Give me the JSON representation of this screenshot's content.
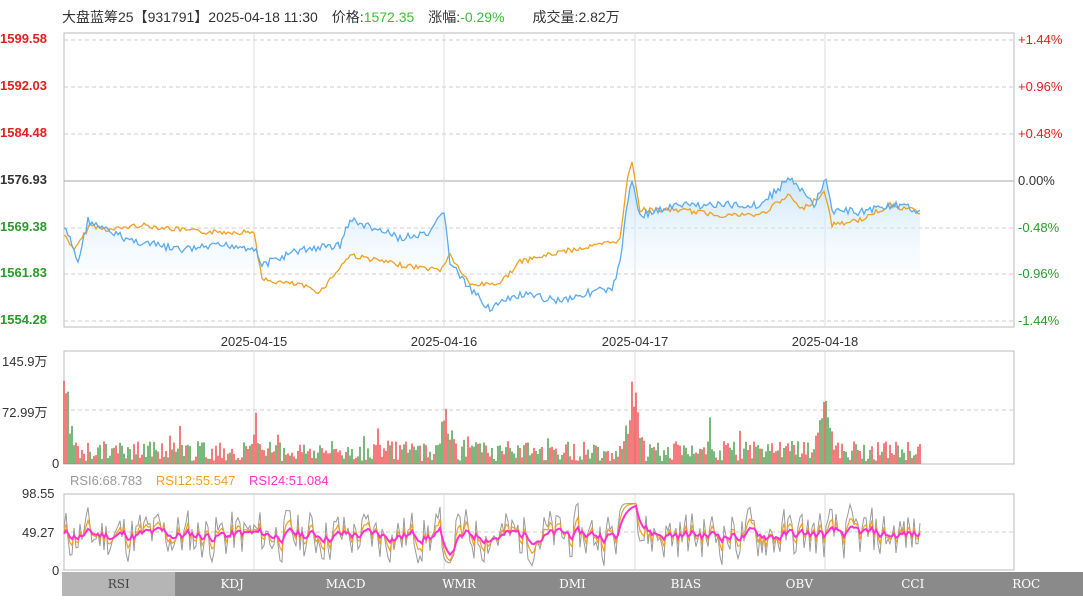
{
  "header": {
    "name": "大盘蓝筹25【931791】",
    "datetime": "2025-04-18 11:30",
    "price_label": "价格:",
    "price": "1572.35",
    "change_label": "涨幅:",
    "change": "-0.29%",
    "volume_label": "成交量:",
    "volume": "2.82万"
  },
  "price_axis": {
    "left": [
      "1599.58",
      "1592.03",
      "1584.48",
      "1576.93",
      "1569.38",
      "1561.83",
      "1554.28"
    ],
    "right": [
      "+1.44%",
      "+0.96%",
      "+0.48%",
      "0.00%",
      "-0.48%",
      "-0.96%",
      "-1.44%"
    ]
  },
  "dates": [
    "2025-04-15",
    "2025-04-16",
    "2025-04-17",
    "2025-04-18"
  ],
  "volume_axis": [
    "145.9万",
    "72.99万",
    "0"
  ],
  "rsi": {
    "axis": [
      "98.55",
      "49.27",
      "0"
    ],
    "legend": {
      "rsi6": "RSI6:68.783",
      "rsi12": "RSI12:55.547",
      "rsi24": "RSI24:51.084"
    }
  },
  "tabs": [
    "RSI",
    "KDJ",
    "MACD",
    "WMR",
    "DMI",
    "BIAS",
    "OBV",
    "CCI",
    "ROC"
  ],
  "colors": {
    "price_line": "#5aaaf0",
    "avg_line": "#f0a020",
    "rsi6": "#999999",
    "rsi12": "#f0a020",
    "rsi24": "#ff30d0",
    "up": "#f05050",
    "down": "#50a050"
  }
}
